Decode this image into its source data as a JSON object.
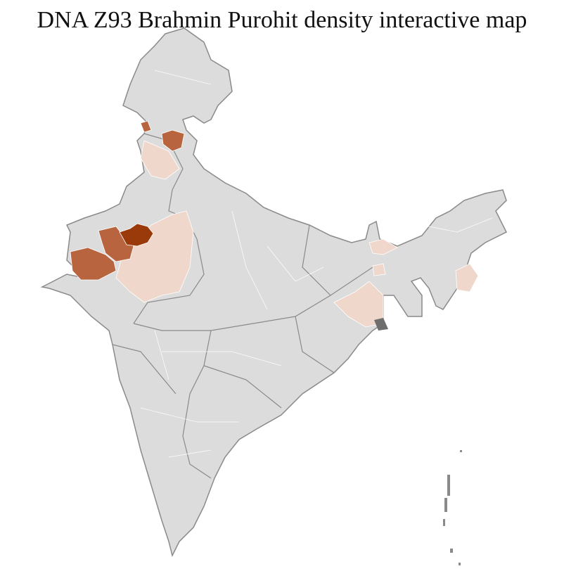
{
  "title": "DNA Z93 Brahmin Purohit density interactive map",
  "colors": {
    "background_region": "#dcdcdc",
    "state_border": "#8a8a8a",
    "district_border": "#ffffff",
    "density_high": "#9a3a0a",
    "density_medium": "#b8643f",
    "density_low": "#efd7cb"
  }
}
